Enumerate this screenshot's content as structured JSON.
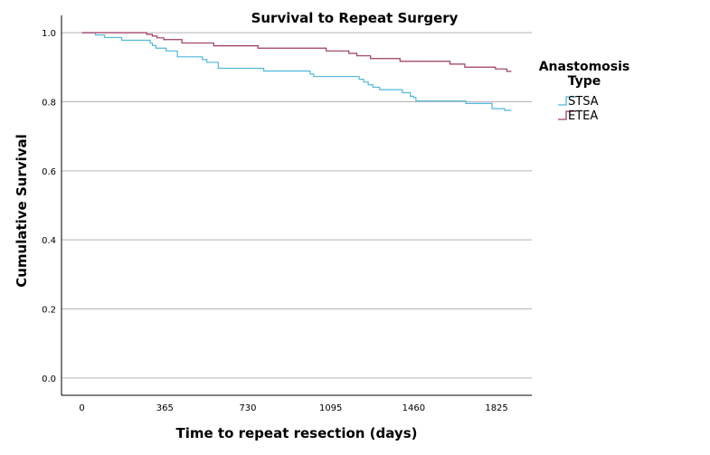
{
  "chart_data": {
    "type": "line",
    "subtype": "kaplan-meier-step",
    "title": "Survival to Repeat Surgery",
    "xlabel": "Time to repeat resection (days)",
    "ylabel": "Cumulative Survival",
    "xlim": [
      -90,
      1980
    ],
    "ylim": [
      -0.05,
      1.05
    ],
    "x_ticks": [
      0,
      365,
      730,
      1095,
      1460,
      1825
    ],
    "x_tick_labels": [
      "0",
      "365",
      "730",
      "1095",
      "1460",
      "1825"
    ],
    "y_ticks": [
      0.0,
      0.2,
      0.4,
      0.6,
      0.8,
      1.0
    ],
    "y_tick_labels": [
      "0.0",
      "0.2",
      "0.4",
      "0.6",
      "0.8",
      "1.0"
    ],
    "grid": "horizontal",
    "legend": {
      "title": "Anastomosis Type",
      "title_lines": [
        "Anastomosis",
        "Type"
      ],
      "placement": "right"
    },
    "series": [
      {
        "name": "STSA",
        "color": "#4fb8dc",
        "x": [
          0,
          60,
          100,
          175,
          300,
          310,
          325,
          370,
          420,
          530,
          550,
          600,
          800,
          1005,
          1020,
          1220,
          1240,
          1260,
          1280,
          1310,
          1410,
          1445,
          1460,
          1470,
          1515,
          1690,
          1805,
          1860,
          1890
        ],
        "y": [
          1.0,
          0.993,
          0.986,
          0.978,
          0.97,
          0.963,
          0.955,
          0.947,
          0.93,
          0.922,
          0.914,
          0.897,
          0.889,
          0.88,
          0.873,
          0.865,
          0.857,
          0.849,
          0.842,
          0.835,
          0.826,
          0.816,
          0.812,
          0.802,
          0.802,
          0.795,
          0.78,
          0.775,
          0.775
        ]
      },
      {
        "name": "ETEA",
        "color": "#9e3a5e",
        "x": [
          0,
          60,
          285,
          310,
          330,
          360,
          440,
          580,
          775,
          1075,
          1175,
          1210,
          1270,
          1400,
          1620,
          1685,
          1820,
          1870,
          1890
        ],
        "y": [
          1.0,
          1.0,
          0.995,
          0.99,
          0.985,
          0.98,
          0.97,
          0.962,
          0.955,
          0.947,
          0.94,
          0.933,
          0.925,
          0.917,
          0.909,
          0.9,
          0.895,
          0.888,
          0.888
        ]
      }
    ]
  }
}
